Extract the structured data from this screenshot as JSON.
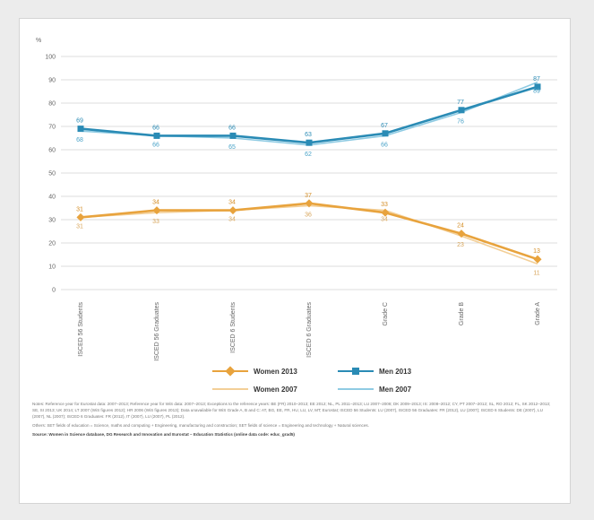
{
  "chart_data": {
    "type": "line",
    "unit_label": "%",
    "ylim": [
      0,
      100
    ],
    "yticks": [
      0,
      10,
      20,
      30,
      40,
      50,
      60,
      70,
      80,
      90,
      100
    ],
    "grid": true,
    "legend_position": "bottom",
    "categories": [
      "ISCED 56 Students",
      "ISCED 56 Graduates",
      "ISCED 6 Students",
      "ISCED 6 Graduates",
      "Grade C",
      "Grade B",
      "Grade A"
    ],
    "series": [
      {
        "name": "Women 2013",
        "color": "#e8a33d",
        "values": [
          31,
          34,
          34,
          37,
          33,
          24,
          13
        ]
      },
      {
        "name": "Women 2007",
        "color": "#f3cf97",
        "values": [
          31,
          33,
          34,
          36,
          34,
          23,
          11
        ]
      },
      {
        "name": "Men 2013",
        "color": "#2a8bb5",
        "values": [
          69,
          66,
          66,
          63,
          67,
          77,
          87
        ]
      },
      {
        "name": "Men 2007",
        "color": "#8fcbe3",
        "values": [
          68,
          66,
          65,
          62,
          66,
          76,
          89
        ]
      }
    ],
    "labels": {
      "women_2013": [
        "31",
        "34",
        "34",
        "37",
        "33",
        "24",
        "13"
      ],
      "women_2007": [
        "31",
        "33",
        "34",
        "36",
        "34",
        "23",
        "11"
      ],
      "men_2013": [
        "69",
        "66",
        "66",
        "63",
        "67",
        "77",
        "87"
      ],
      "men_2007": [
        "68",
        "66",
        "65",
        "62",
        "66",
        "76",
        "89"
      ]
    }
  },
  "notes": {
    "note1": "Notes: Reference year for Eurostat data: 2007–2013; Reference year for WiS data: 2007–2013; Exceptions to the reference years: BE (FR) 2010–2013; EE 2012; NL, PL 2011–2013; LU 2007–2008; DK 2009–2013; IS: 2008–2012; CY, PT 2007–2012; SL, RO 2012; FL, SK 2012–2013; SE, SI 2013; UK 2014; LT 2007 (WiS figures 2012); HR 2006 (WiS figures 2013); Data unavailable for WiS Grade A, B and C: AT, BG, EE, FR, HU, LU, LV, MT; Eurostat; ISCED 56 Students: LU (2007), ISCED 56 Graduates: FR (2012), LU (2007); ISCED 6 Students: DE (2007), LU (2007), NL (2007); ISCED 6 Graduates: FR (2012), IT (2007), LU (2007), PL (2012).",
    "note2": "Others: SET fields of education = Science, maths and computing + Engineering, manufacturing and construction; SET fields of science = Engineering and technology + Natural sciences.",
    "source": "Source: Women in Science database, DG Research and Innovation and Eurostat – Education Statistics (online data code: educ_grad5)"
  }
}
